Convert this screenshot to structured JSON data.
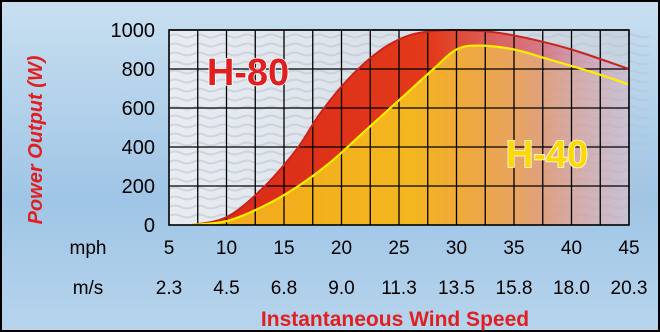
{
  "chart_data": {
    "type": "area",
    "ylabel": "Power Output (W)",
    "xlabel": "Instantaneous Wind Speed",
    "ylim": [
      0,
      1000
    ],
    "xlim_mph": [
      5,
      45
    ],
    "y_ticks": [
      "0",
      "200",
      "400",
      "600",
      "800",
      "1000"
    ],
    "x_unit_mph": "mph",
    "x_unit_ms": "m/s",
    "x_ticks_mph": [
      "5",
      "10",
      "15",
      "20",
      "25",
      "30",
      "35",
      "40",
      "45"
    ],
    "x_ticks_ms": [
      "2.3",
      "4.5",
      "6.8",
      "9.0",
      "11.3",
      "13.5",
      "15.8",
      "18.0",
      "20.3"
    ],
    "grid": true,
    "series": [
      {
        "name": "H-80",
        "color": "#e02020",
        "x": [
          7,
          10,
          13,
          16,
          18,
          20,
          22,
          24,
          26,
          28,
          30,
          33,
          36,
          40,
          45
        ],
        "y": [
          0,
          40,
          180,
          380,
          560,
          710,
          830,
          920,
          975,
          995,
          1000,
          990,
          960,
          900,
          800
        ]
      },
      {
        "name": "H-40",
        "color": "#ffee00",
        "x": [
          7,
          10,
          13,
          16,
          19,
          22,
          25,
          28,
          30,
          32,
          35,
          38,
          42,
          45
        ],
        "y": [
          0,
          20,
          90,
          190,
          320,
          480,
          640,
          800,
          900,
          920,
          900,
          850,
          780,
          720
        ]
      }
    ]
  }
}
